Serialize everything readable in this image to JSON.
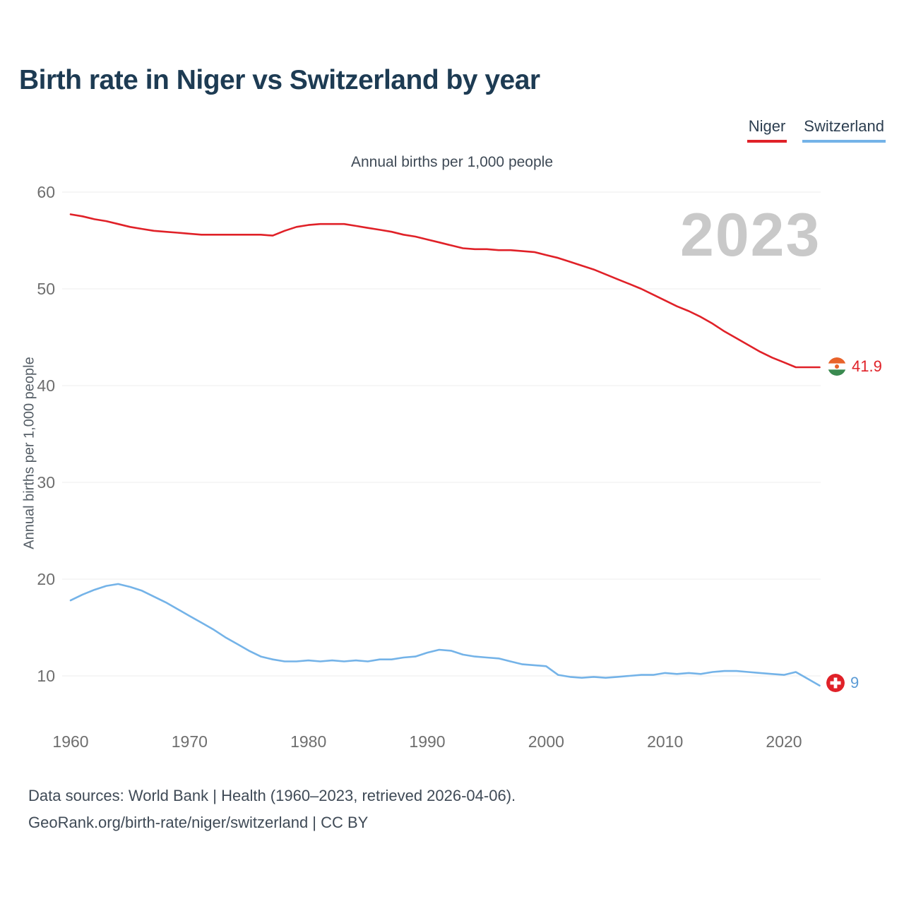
{
  "title": "Birth rate in Niger vs Switzerland by year",
  "legend": [
    {
      "label": "Niger",
      "color": "#e02128"
    },
    {
      "label": "Switzerland",
      "color": "#74b3e8"
    }
  ],
  "subtitle": "Annual births per 1,000 people",
  "y_axis_label": "Annual births per 1,000 people",
  "watermark": "2023",
  "end_labels": {
    "niger": "41.9",
    "switzerland": "9"
  },
  "footer": {
    "line1": "Data sources: World Bank | Health (1960–2023, retrieved 2026-04-06).",
    "line2": "GeoRank.org/birth-rate/niger/switzerland | CC BY"
  },
  "chart_data": {
    "type": "line",
    "title": "Birth rate in Niger vs Switzerland by year",
    "subtitle": "Annual births per 1,000 people",
    "xlabel": "",
    "ylabel": "Annual births per 1,000 people",
    "ylim": [
      5,
      62
    ],
    "yticks": [
      10,
      20,
      30,
      40,
      50,
      60
    ],
    "xticks": [
      1960,
      1970,
      1980,
      1990,
      2000,
      2010,
      2020
    ],
    "grid": true,
    "legend_position": "top-right",
    "x": [
      1960,
      1961,
      1962,
      1963,
      1964,
      1965,
      1966,
      1967,
      1968,
      1969,
      1970,
      1971,
      1972,
      1973,
      1974,
      1975,
      1976,
      1977,
      1978,
      1979,
      1980,
      1981,
      1982,
      1983,
      1984,
      1985,
      1986,
      1987,
      1988,
      1989,
      1990,
      1991,
      1992,
      1993,
      1994,
      1995,
      1996,
      1997,
      1998,
      1999,
      2000,
      2001,
      2002,
      2003,
      2004,
      2005,
      2006,
      2007,
      2008,
      2009,
      2010,
      2011,
      2012,
      2013,
      2014,
      2015,
      2016,
      2017,
      2018,
      2019,
      2020,
      2021,
      2022,
      2023
    ],
    "series": [
      {
        "name": "Niger",
        "color": "#e02128",
        "values": [
          57.7,
          57.5,
          57.2,
          57.0,
          56.7,
          56.4,
          56.2,
          56.0,
          55.9,
          55.8,
          55.7,
          55.6,
          55.6,
          55.6,
          55.6,
          55.6,
          55.6,
          55.5,
          56.0,
          56.4,
          56.6,
          56.7,
          56.7,
          56.7,
          56.5,
          56.3,
          56.1,
          55.9,
          55.6,
          55.4,
          55.1,
          54.8,
          54.5,
          54.2,
          54.1,
          54.1,
          54.0,
          54.0,
          53.9,
          53.8,
          53.5,
          53.2,
          52.8,
          52.4,
          52.0,
          51.5,
          51.0,
          50.5,
          50.0,
          49.4,
          48.8,
          48.2,
          47.7,
          47.1,
          46.4,
          45.6,
          44.9,
          44.2,
          43.5,
          42.9,
          42.4,
          41.9,
          41.9,
          41.9
        ]
      },
      {
        "name": "Switzerland",
        "color": "#74b3e8",
        "values": [
          17.8,
          18.4,
          18.9,
          19.3,
          19.5,
          19.2,
          18.8,
          18.2,
          17.6,
          16.9,
          16.2,
          15.5,
          14.8,
          14.0,
          13.3,
          12.6,
          12.0,
          11.7,
          11.5,
          11.5,
          11.6,
          11.5,
          11.6,
          11.5,
          11.6,
          11.5,
          11.7,
          11.7,
          11.9,
          12.0,
          12.4,
          12.7,
          12.6,
          12.2,
          12.0,
          11.9,
          11.8,
          11.5,
          11.2,
          11.1,
          11.0,
          10.1,
          9.9,
          9.8,
          9.9,
          9.8,
          9.9,
          10.0,
          10.1,
          10.1,
          10.3,
          10.2,
          10.3,
          10.2,
          10.4,
          10.5,
          10.5,
          10.4,
          10.3,
          10.2,
          10.1,
          10.4,
          9.7,
          9.0
        ]
      }
    ]
  }
}
